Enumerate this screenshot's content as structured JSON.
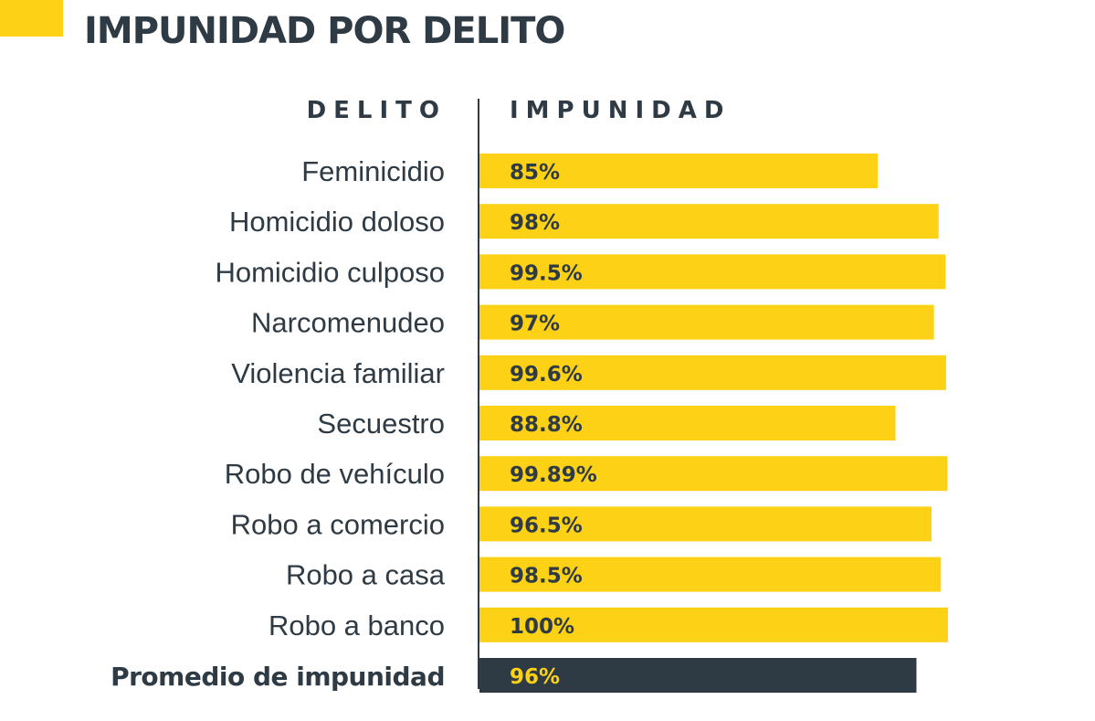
{
  "chart_data": {
    "type": "bar",
    "orientation": "horizontal",
    "title": "IMPUNIDAD POR DELITO",
    "category_header": "DELITO",
    "value_header": "IMPUNIDAD",
    "categories": [
      "Feminicidio",
      "Homicidio doloso",
      "Homicidio culposo",
      "Narcomenudeo",
      "Violencia familiar",
      "Secuestro",
      "Robo de vehículo",
      "Robo a comercio",
      "Robo a casa",
      "Robo a banco",
      "Promedio de impunidad"
    ],
    "values": [
      85,
      98,
      99.5,
      97,
      99.6,
      88.8,
      99.89,
      96.5,
      98.5,
      100,
      96
    ],
    "labels": [
      "85%",
      "98%",
      "99.5%",
      "97%",
      "99.6%",
      "88.8%",
      "99.89%",
      "96.5%",
      "98.5%",
      "100%",
      "96%"
    ],
    "highlight": "Promedio de impunidad",
    "xlim": [
      0,
      100
    ],
    "xlabel": "",
    "ylabel": "",
    "grid": false,
    "colors": {
      "bar": "#fcd116",
      "highlight_bar": "#2e3a44",
      "label_on_bar": "#2e3a44",
      "label_on_highlight": "#fcd116",
      "text": "#2e3a44"
    }
  }
}
